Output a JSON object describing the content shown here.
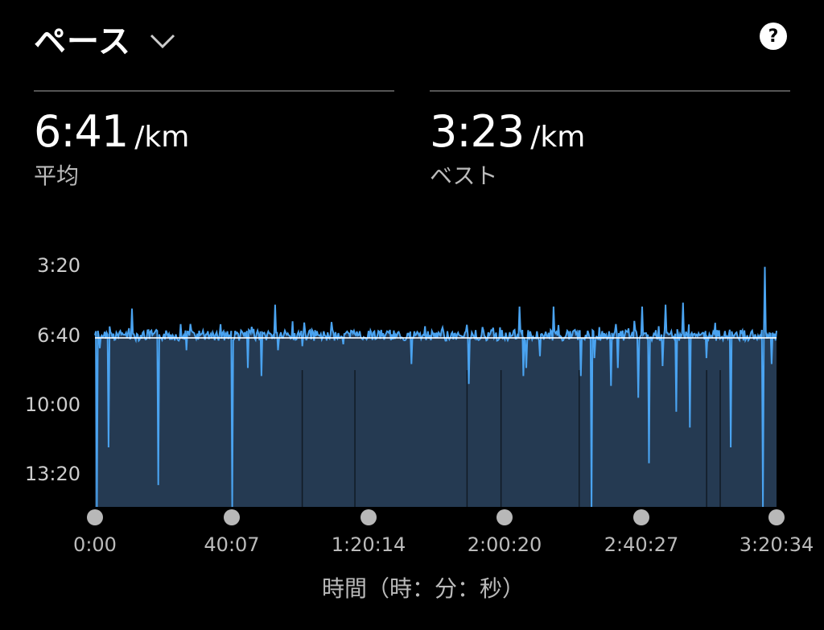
{
  "header": {
    "title": "ペース"
  },
  "help_label": "?",
  "stats": [
    {
      "value": "6:41",
      "unit": "/km",
      "label": "平均"
    },
    {
      "value": "3:23",
      "unit": "/km",
      "label": "ベスト"
    }
  ],
  "colors": {
    "line": "#4aa3f0",
    "fill": "#253a52",
    "avg": "#ffffff",
    "marker": "#b8b8b8"
  },
  "chart_data": {
    "type": "line",
    "title": "",
    "xlabel": "時間（時：分：秒）",
    "ylabel": "",
    "x_ticks": [
      "0:00",
      "40:07",
      "1:20:14",
      "2:00:20",
      "2:40:27",
      "3:20:34"
    ],
    "y_ticks": [
      "3:20",
      "6:40",
      "10:00",
      "13:20"
    ],
    "y_inverted": true,
    "xlim_minutes": [
      0,
      200.57
    ],
    "ylim_minutes": [
      3.33,
      15.5
    ],
    "average_pace": "6:41",
    "baseline_pace_minutes": 6.9,
    "dips": [
      {
        "t": 0.5,
        "v": 15.5
      },
      {
        "t": 1.5,
        "v": 7.5
      },
      {
        "t": 4,
        "v": 12.5
      },
      {
        "t": 11,
        "v": 9.5
      },
      {
        "t": 18.7,
        "v": 14.4
      },
      {
        "t": 27,
        "v": 7.6
      },
      {
        "t": 40.5,
        "v": 15.5
      },
      {
        "t": 45,
        "v": 8.5
      },
      {
        "t": 49,
        "v": 8.9
      },
      {
        "t": 54,
        "v": 7.6
      },
      {
        "t": 61,
        "v": 7.4
      },
      {
        "t": 73,
        "v": 7.3
      },
      {
        "t": 93,
        "v": 8.3
      },
      {
        "t": 110,
        "v": 9.3
      },
      {
        "t": 126,
        "v": 8.9
      },
      {
        "t": 127,
        "v": 8.5
      },
      {
        "t": 131,
        "v": 7.9
      },
      {
        "t": 143,
        "v": 8.9
      },
      {
        "t": 146,
        "v": 15.5
      },
      {
        "t": 147,
        "v": 8.0
      },
      {
        "t": 152,
        "v": 9.4
      },
      {
        "t": 154,
        "v": 8.5
      },
      {
        "t": 160,
        "v": 10.0
      },
      {
        "t": 163,
        "v": 13.3
      },
      {
        "t": 167,
        "v": 8.4
      },
      {
        "t": 171,
        "v": 10.7
      },
      {
        "t": 175,
        "v": 11.5
      },
      {
        "t": 180,
        "v": 8.0
      },
      {
        "t": 187,
        "v": 12.5
      },
      {
        "t": 196.5,
        "v": 15.5
      },
      {
        "t": 199,
        "v": 8.3
      }
    ],
    "spikes": [
      {
        "t": 11,
        "v": 5.5
      },
      {
        "t": 53,
        "v": 5.3
      },
      {
        "t": 125,
        "v": 5.4
      },
      {
        "t": 135,
        "v": 5.4
      },
      {
        "t": 161,
        "v": 5.4
      },
      {
        "t": 168,
        "v": 5.3
      },
      {
        "t": 173,
        "v": 5.2
      },
      {
        "t": 197,
        "v": 3.4
      }
    ]
  }
}
